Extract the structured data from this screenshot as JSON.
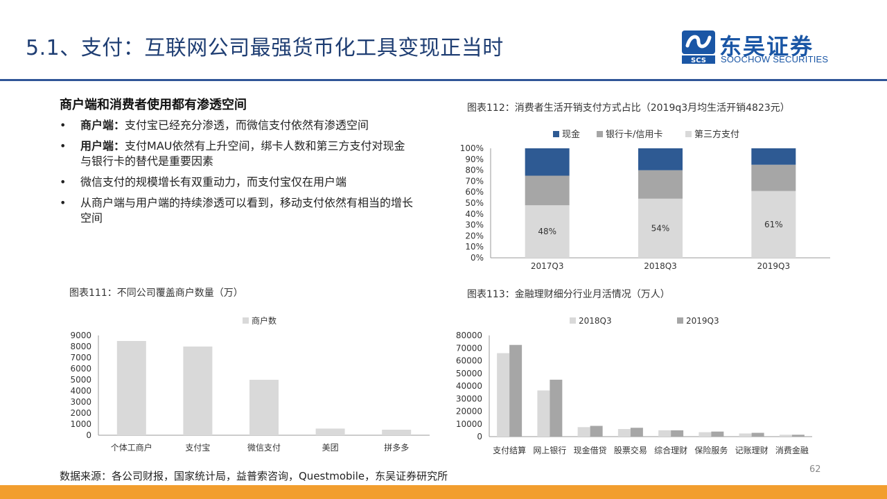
{
  "header": {
    "title": "5.1、支付：互联网公司最强货币化工具变现正当时",
    "logo_cn": "东吴证券",
    "logo_en": "SOOCHOW SECURITIES",
    "logo_mark_text": "SCS"
  },
  "left_text": {
    "heading": "商户端和消费者使用都有渗透空间",
    "bullets": [
      {
        "bold": "商户端：",
        "text": "支付宝已经充分渗透，而微信支付依然有渗透空间"
      },
      {
        "bold": "用户端：",
        "text": "支付MAU依然有上升空间，绑卡人数和第三方支付对现金与银行卡的替代是重要因素"
      },
      {
        "bold": "",
        "text": "微信支付的规模增长有双重动力，而支付宝仅在用户端"
      },
      {
        "bold": "",
        "text": "从商户端与用户端的持续渗透可以看到，移动支付依然有相当的增长空间"
      }
    ]
  },
  "captions": {
    "fig112": "图表112：消费者生活开销支付方式占比（2019q3月均生活开销4823元）",
    "fig111": "图表111：不同公司覆盖商户数量（万）",
    "fig113": "图表113：金融理财细分行业月活情况（万人）"
  },
  "footer": {
    "source": "数据来源：各公司财报，国家统计局，益普索咨询，Questmobile，东吴证券研究所",
    "page": "62"
  },
  "colors": {
    "title": "#1f3e73",
    "rule": "#2f5597",
    "bottom_bar": "#f29e2e",
    "cash": "#2e5a93",
    "card": "#a6a6a6",
    "third": "#d9d9d9",
    "merchant": "#d9d9d9",
    "q2018": "#d9d9d9",
    "q2019": "#a6a6a6"
  },
  "chart_data": [
    {
      "id": "fig112",
      "type": "bar",
      "stacked": true,
      "categories": [
        "2017Q3",
        "2018Q3",
        "2019Q3"
      ],
      "series": [
        {
          "name": "第三方支付",
          "values": [
            48,
            54,
            61
          ],
          "color": "#d9d9d9",
          "labels": [
            "48%",
            "54%",
            "61%"
          ]
        },
        {
          "name": "银行卡/信用卡",
          "values": [
            27,
            26,
            24
          ],
          "color": "#a6a6a6"
        },
        {
          "name": "现金",
          "values": [
            25,
            20,
            15
          ],
          "color": "#2e5a93"
        }
      ],
      "legend_order": [
        "现金",
        "银行卡/信用卡",
        "第三方支付"
      ],
      "ylim": [
        0,
        100
      ],
      "yticks": [
        "0%",
        "10%",
        "20%",
        "30%",
        "40%",
        "50%",
        "60%",
        "70%",
        "80%",
        "90%",
        "100%"
      ],
      "legend": "top"
    },
    {
      "id": "fig111",
      "type": "bar",
      "categories": [
        "个体工商户",
        "支付宝",
        "微信支付",
        "美团",
        "拼多多"
      ],
      "series": [
        {
          "name": "商户数",
          "values": [
            8500,
            8000,
            5000,
            600,
            500
          ],
          "color": "#d9d9d9"
        }
      ],
      "ylim": [
        0,
        9000
      ],
      "yticks": [
        "0",
        "1000",
        "2000",
        "3000",
        "4000",
        "5000",
        "6000",
        "7000",
        "8000",
        "9000"
      ],
      "legend": "top"
    },
    {
      "id": "fig113",
      "type": "bar",
      "categories": [
        "支付结算",
        "网上银行",
        "现金借贷",
        "股票交易",
        "综合理财",
        "保险服务",
        "记账理财",
        "消费金融"
      ],
      "series": [
        {
          "name": "2018Q3",
          "values": [
            66000,
            36500,
            7500,
            6000,
            5000,
            3500,
            2500,
            1500
          ],
          "color": "#d9d9d9"
        },
        {
          "name": "2019Q3",
          "values": [
            72500,
            45000,
            8500,
            7000,
            5000,
            4000,
            3000,
            1500
          ],
          "color": "#a6a6a6"
        }
      ],
      "ylim": [
        0,
        80000
      ],
      "yticks": [
        "0",
        "10000",
        "20000",
        "30000",
        "40000",
        "50000",
        "60000",
        "70000",
        "80000"
      ],
      "legend": "top"
    }
  ]
}
